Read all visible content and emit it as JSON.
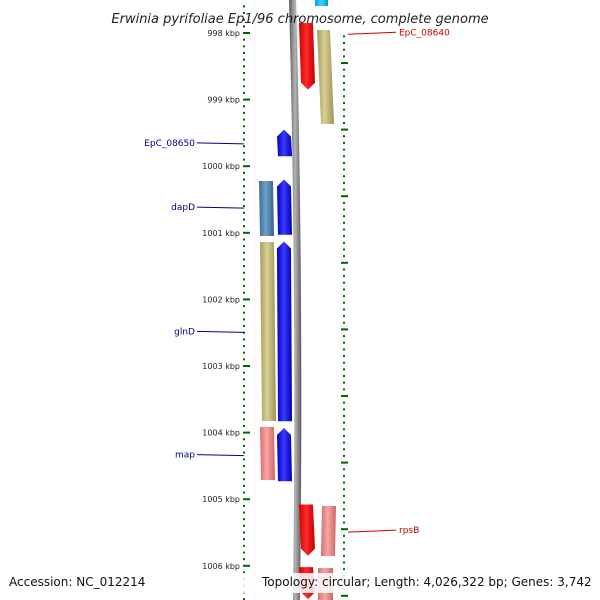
{
  "title": "Erwinia pyrifoliae Ep1/96 chromosome, complete genome",
  "footer": {
    "accession": "Accession: NC_012214",
    "topology": "Topology: circular; Length: 4,026,322 bp; Genes: 3,742"
  },
  "ruler": {
    "unit": "kbp",
    "ticks": [
      {
        "kbp": 998,
        "label": "998 kbp"
      },
      {
        "kbp": 999,
        "label": "999 kbp"
      },
      {
        "kbp": 1000,
        "label": "1000 kbp"
      },
      {
        "kbp": 1001,
        "label": "1001 kbp"
      },
      {
        "kbp": 1002,
        "label": "1002 kbp"
      },
      {
        "kbp": 1003,
        "label": "1003 kbp"
      },
      {
        "kbp": 1004,
        "label": "1004 kbp"
      },
      {
        "kbp": 1005,
        "label": "1005 kbp"
      },
      {
        "kbp": 1006,
        "label": "1006 kbp"
      }
    ]
  },
  "colors": {
    "forward_cds": "#0000ff",
    "reverse_cds": "#ff0000",
    "forward_label": "#00008b",
    "reverse_label": "#cc0000",
    "tick": "#006400",
    "backbone": "#808080",
    "olive_feature": "#c8be82",
    "pink_feature": "#f08c8c",
    "steel_feature": "#4682b4",
    "cyan_feature": "#00bfff"
  },
  "genes": {
    "forward": [
      {
        "name": "EpC_08650",
        "start_kbp": 999.45,
        "end_kbp": 999.85
      },
      {
        "name": "dapD",
        "start_kbp": 1000.2,
        "end_kbp": 1001.03
      },
      {
        "name": "glnD",
        "start_kbp": 1001.13,
        "end_kbp": 1003.83
      },
      {
        "name": "map",
        "start_kbp": 1003.93,
        "end_kbp": 1004.73
      }
    ],
    "reverse": [
      {
        "name": "EpC_08640",
        "start_kbp": 997.85,
        "end_kbp": 998.85
      },
      {
        "name": "rpsB",
        "start_kbp": 1005.08,
        "end_kbp": 1005.85
      },
      {
        "name": "",
        "start_kbp": 1006.02,
        "end_kbp": 1006.5
      }
    ]
  }
}
